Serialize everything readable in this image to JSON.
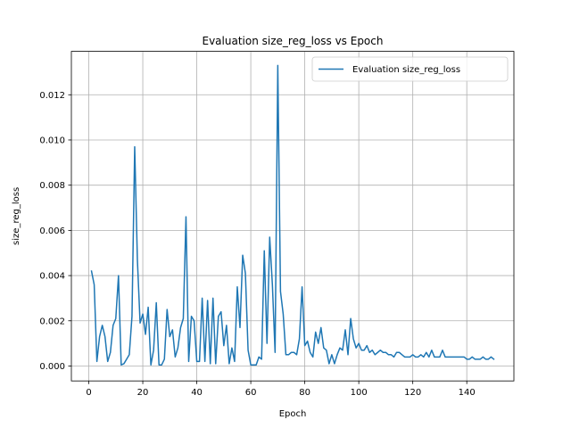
{
  "chart_data": {
    "type": "line",
    "title": "Evaluation size_reg_loss vs Epoch",
    "xlabel": "Epoch",
    "ylabel": "size_reg_loss",
    "xlim": [
      -6.45,
      157.45
    ],
    "ylim": [
      -0.00066,
      0.01392
    ],
    "xticks": [
      0,
      20,
      40,
      60,
      80,
      100,
      120,
      140
    ],
    "xtick_labels": [
      "0",
      "20",
      "40",
      "60",
      "80",
      "100",
      "120",
      "140"
    ],
    "yticks": [
      0.0,
      0.002,
      0.004,
      0.006,
      0.008,
      0.01,
      0.012
    ],
    "ytick_labels": [
      "0.000",
      "0.002",
      "0.004",
      "0.006",
      "0.008",
      "0.010",
      "0.012"
    ],
    "grid": true,
    "legend_position": "top-right",
    "colors": {
      "series": "#1f77b4",
      "grid": "#b0b0b0"
    },
    "series": [
      {
        "name": "Evaluation size_reg_loss",
        "x": [
          1,
          2,
          3,
          4,
          5,
          6,
          7,
          8,
          9,
          10,
          11,
          12,
          13,
          14,
          15,
          16,
          17,
          18,
          19,
          20,
          21,
          22,
          23,
          24,
          25,
          26,
          27,
          28,
          29,
          30,
          31,
          32,
          33,
          34,
          35,
          36,
          37,
          38,
          39,
          40,
          41,
          42,
          43,
          44,
          45,
          46,
          47,
          48,
          49,
          50,
          51,
          52,
          53,
          54,
          55,
          56,
          57,
          58,
          59,
          60,
          61,
          62,
          63,
          64,
          65,
          66,
          67,
          68,
          69,
          70,
          71,
          72,
          73,
          74,
          75,
          76,
          77,
          78,
          79,
          80,
          81,
          82,
          83,
          84,
          85,
          86,
          87,
          88,
          89,
          90,
          91,
          92,
          93,
          94,
          95,
          96,
          97,
          98,
          99,
          100,
          101,
          102,
          103,
          104,
          105,
          106,
          107,
          108,
          109,
          110,
          111,
          112,
          113,
          114,
          115,
          116,
          117,
          118,
          119,
          120,
          121,
          122,
          123,
          124,
          125,
          126,
          127,
          128,
          129,
          130,
          131,
          132,
          133,
          134,
          135,
          136,
          137,
          138,
          139,
          140,
          141,
          142,
          143,
          144,
          145,
          146,
          147,
          148,
          149,
          150
        ],
        "y": [
          0.0042,
          0.0036,
          0.0002,
          0.0013,
          0.0018,
          0.0013,
          0.0002,
          0.0006,
          0.0018,
          0.0021,
          0.004,
          5e-05,
          0.0001,
          0.0003,
          0.0005,
          0.0022,
          0.0097,
          0.0047,
          0.0019,
          0.0023,
          0.0014,
          0.0026,
          5e-05,
          0.0007,
          0.0028,
          5e-05,
          5e-05,
          0.0003,
          0.0025,
          0.0013,
          0.0016,
          0.0004,
          0.0008,
          0.0017,
          0.0021,
          0.0066,
          0.0002,
          0.0022,
          0.002,
          0.0002,
          0.0002,
          0.003,
          0.0002,
          0.0029,
          0.0001,
          0.003,
          0.0001,
          0.0022,
          0.0024,
          0.0009,
          0.0018,
          0.0001,
          0.0008,
          0.0002,
          0.0035,
          0.0017,
          0.0049,
          0.0041,
          0.0007,
          5e-05,
          5e-05,
          5e-05,
          0.0004,
          0.0003,
          0.0051,
          0.001,
          0.0057,
          0.0036,
          0.0006,
          0.0133,
          0.0033,
          0.0023,
          0.0005,
          0.0005,
          0.0006,
          0.0006,
          0.0005,
          0.0012,
          0.0035,
          0.0009,
          0.0011,
          0.0006,
          0.0004,
          0.0015,
          0.001,
          0.0017,
          0.0008,
          0.0007,
          0.0001,
          0.0005,
          0.0001,
          0.0005,
          0.0008,
          0.0007,
          0.0016,
          0.0005,
          0.0021,
          0.0012,
          0.0008,
          0.001,
          0.0007,
          0.0007,
          0.0009,
          0.0006,
          0.0007,
          0.0005,
          0.0006,
          0.0007,
          0.0006,
          0.0006,
          0.0005,
          0.0005,
          0.0004,
          0.0006,
          0.0006,
          0.0005,
          0.0004,
          0.0004,
          0.0004,
          0.0005,
          0.0004,
          0.0004,
          0.0005,
          0.0004,
          0.0006,
          0.0004,
          0.0007,
          0.0004,
          0.0004,
          0.0004,
          0.0007,
          0.0004,
          0.0004,
          0.0004,
          0.0004,
          0.0004,
          0.0004,
          0.0004,
          0.0004,
          0.0003,
          0.0003,
          0.0004,
          0.0003,
          0.0003,
          0.0003,
          0.0004,
          0.0003,
          0.0003,
          0.0004,
          0.0003
        ]
      }
    ]
  }
}
